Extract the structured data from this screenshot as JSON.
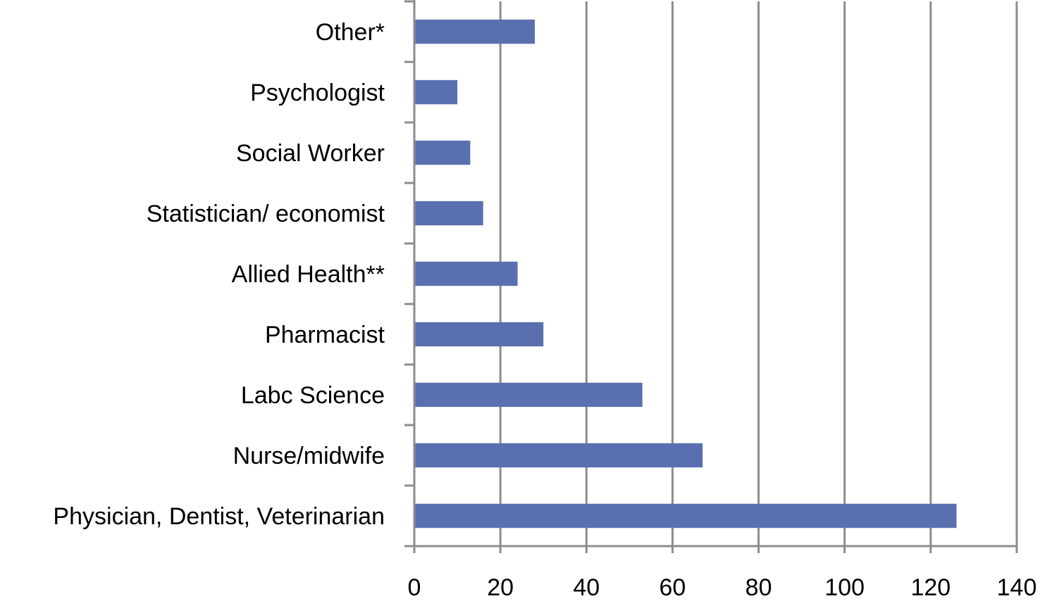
{
  "chart_data": {
    "type": "bar",
    "orientation": "horizontal",
    "title": "",
    "xlabel": "",
    "ylabel": "",
    "categories": [
      "Other*",
      "Psychologist",
      "Social Worker",
      "Statistician/ economist",
      "Allied Health**",
      "Pharmacist",
      "Labc Science",
      "Nurse/midwife",
      "Physician, Dentist, Veterinarian"
    ],
    "values": [
      28,
      10,
      13,
      16,
      24,
      30,
      53,
      67,
      126
    ],
    "xlim": [
      0,
      140
    ],
    "xticks": [
      0,
      20,
      40,
      60,
      80,
      100,
      120,
      140
    ],
    "grid": true,
    "legend": "none",
    "bar_color": "#5a6fb0"
  }
}
